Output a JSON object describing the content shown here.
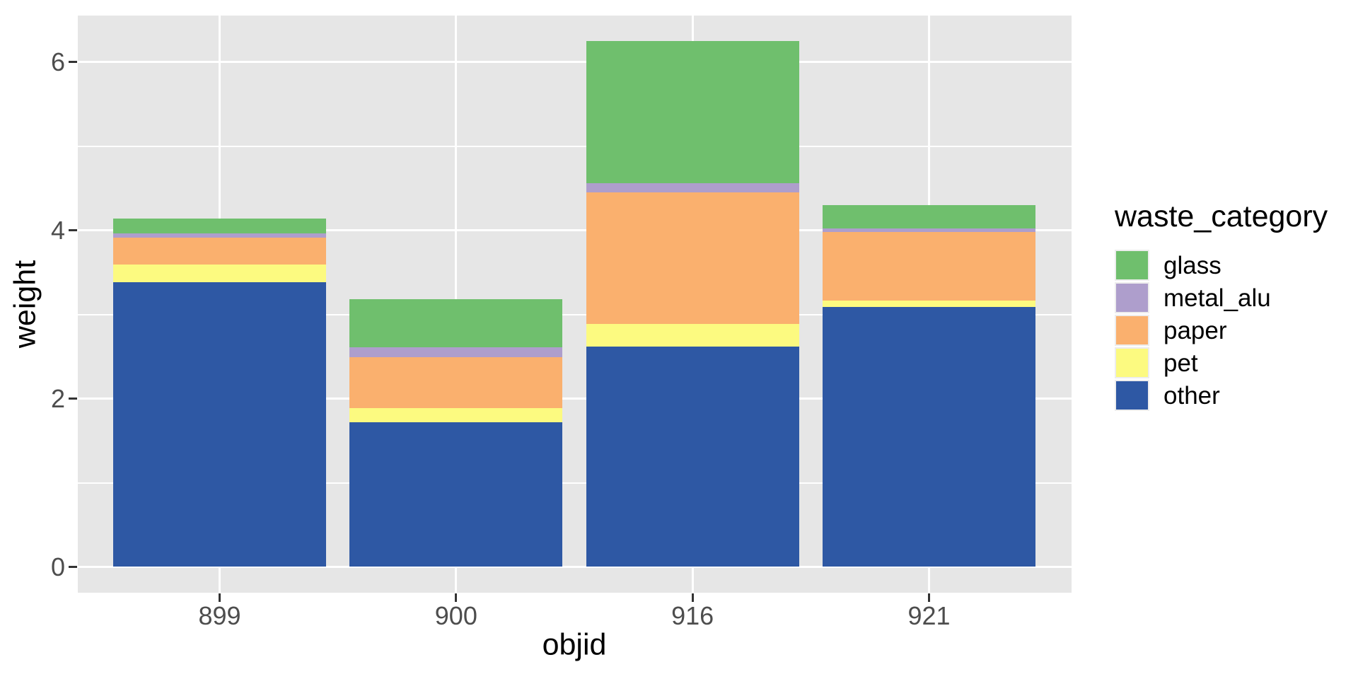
{
  "figure": {
    "background": "#FFFFFF",
    "panel_background": "#E6E6E6",
    "grid_color": "#FFFFFF",
    "tick_mark_color": "#333333",
    "tick_label_color": "#4D4D4D",
    "title_color": "#000000"
  },
  "axes": {
    "x_title": "objid",
    "y_title": "weight",
    "y_tick_labels": [
      "0",
      "2",
      "4",
      "6"
    ],
    "x_tick_labels": [
      "899",
      "900",
      "916",
      "921"
    ]
  },
  "legend": {
    "title": "waste_category",
    "position": "right",
    "items": [
      {
        "label": "glass",
        "color": "#6FBF6D"
      },
      {
        "label": "metal_alu",
        "color": "#AE9ECC"
      },
      {
        "label": "paper",
        "color": "#FAB06E"
      },
      {
        "label": "pet",
        "color": "#FCFA80"
      },
      {
        "label": "other",
        "color": "#2E58A4"
      }
    ]
  },
  "chart_data": {
    "type": "bar",
    "subtype": "stacked_vertical",
    "title": "",
    "xlabel": "objid",
    "ylabel": "weight",
    "categories": [
      "899",
      "900",
      "916",
      "921"
    ],
    "series": [
      {
        "name": "glass",
        "color": "#6FBF6D",
        "values": [
          0.18,
          0.57,
          1.69,
          0.28
        ]
      },
      {
        "name": "metal_alu",
        "color": "#AE9ECC",
        "values": [
          0.05,
          0.12,
          0.11,
          0.04
        ]
      },
      {
        "name": "paper",
        "color": "#FAB06E",
        "values": [
          0.32,
          0.6,
          1.56,
          0.82
        ]
      },
      {
        "name": "pet",
        "color": "#FCFA80",
        "values": [
          0.21,
          0.17,
          0.27,
          0.07
        ]
      },
      {
        "name": "other",
        "color": "#2E58A4",
        "values": [
          3.38,
          1.72,
          2.62,
          3.09
        ]
      }
    ],
    "stack_order_bottom_to_top": [
      "other",
      "pet",
      "paper",
      "metal_alu",
      "glass"
    ],
    "stack_totals": [
      4.14,
      3.18,
      6.25,
      4.3
    ],
    "y_major_ticks": [
      0,
      2,
      4,
      6
    ],
    "y_minor_gridlines": [
      1,
      3,
      5
    ],
    "ylim": [
      -0.31,
      6.56
    ],
    "grid": true,
    "legend_position": "right"
  }
}
